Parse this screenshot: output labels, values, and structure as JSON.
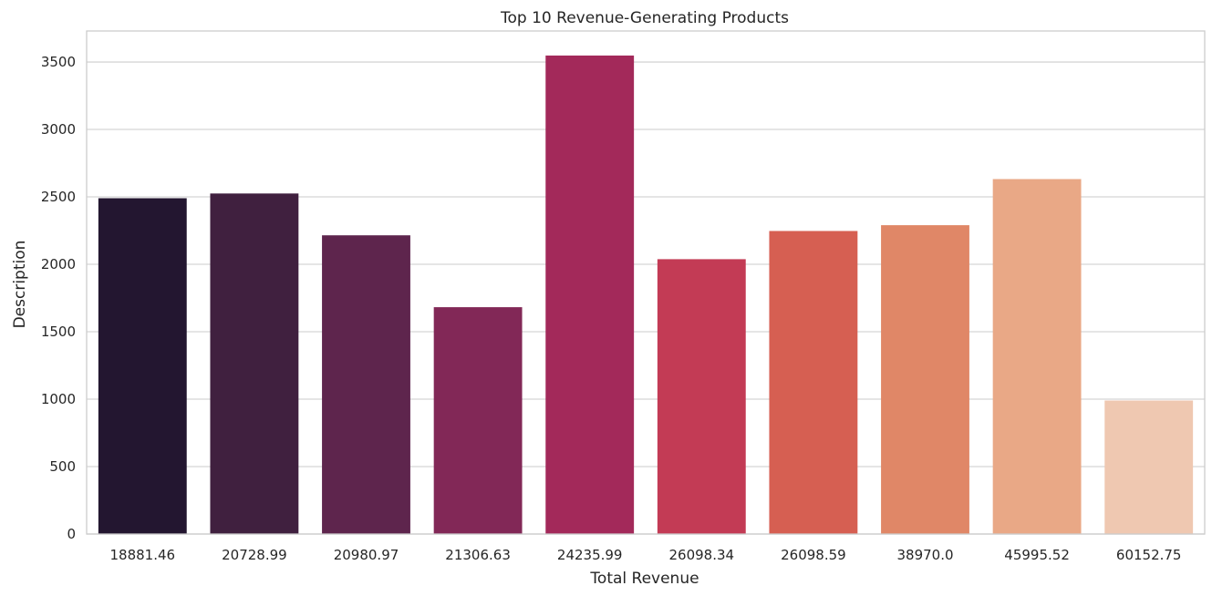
{
  "chart_data": {
    "type": "bar",
    "title": "Top 10 Revenue-Generating Products",
    "xlabel": "Total Revenue",
    "ylabel": "Description",
    "categories": [
      "18881.46",
      "20728.99",
      "20980.97",
      "21306.63",
      "24235.99",
      "26098.34",
      "26098.59",
      "38970.0",
      "45995.52",
      "60152.75"
    ],
    "values": [
      2490,
      2525,
      2215,
      1682,
      3548,
      2038,
      2247,
      2290,
      2632,
      990
    ],
    "ylim": [
      0,
      3730
    ],
    "yticks": [
      0,
      500,
      1000,
      1500,
      2000,
      2500,
      3000,
      3500
    ],
    "grid": true,
    "colors": [
      "#231630",
      "#40203f",
      "#5e254d",
      "#822857",
      "#a3295a",
      "#c33b55",
      "#d65f52",
      "#e08767",
      "#e9a886",
      "#efc8b1"
    ],
    "grid_color": "#d5d5d5",
    "frame_color": "#cccccc"
  }
}
